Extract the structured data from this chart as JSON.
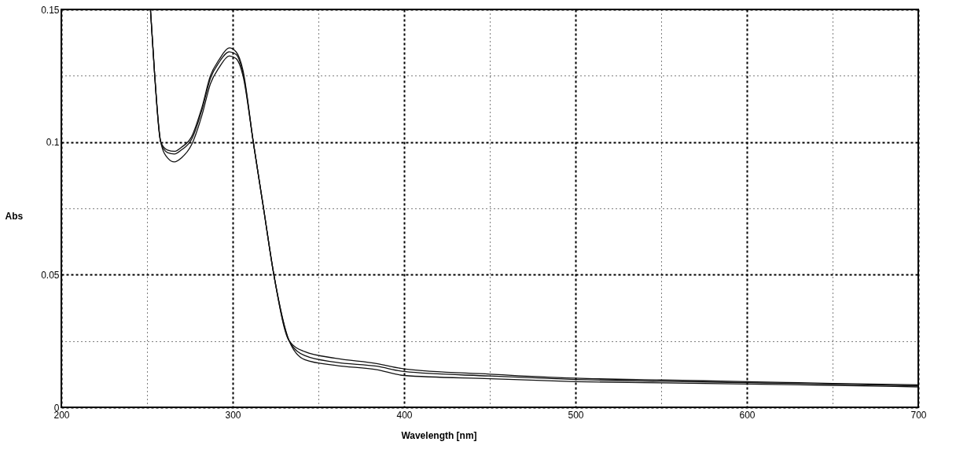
{
  "chart_data": {
    "type": "line",
    "xlabel": "Wavelength [nm]",
    "ylabel": "Abs",
    "xlim": [
      200,
      700
    ],
    "ylim": [
      0,
      0.15
    ],
    "xticks": [
      200,
      {
        "value": 250,
        "label": null
      },
      300,
      {
        "value": 350,
        "label": null
      },
      400,
      {
        "value": 450,
        "label": null
      },
      500,
      {
        "value": 550,
        "label": null
      },
      600,
      {
        "value": 650,
        "label": null
      },
      700
    ],
    "yticks": [
      0,
      {
        "value": 0.025,
        "label": null
      },
      0.05,
      {
        "value": 0.075,
        "label": null
      },
      0.1,
      {
        "value": 0.125,
        "label": null
      },
      0.15
    ],
    "grid": true,
    "line_style": "solid",
    "x": [
      252,
      254.5,
      258,
      262,
      266,
      270,
      276,
      282,
      287,
      292,
      298,
      302,
      306,
      312,
      318,
      324,
      333,
      342,
      360,
      384,
      400,
      450,
      500,
      550,
      600,
      650,
      700
    ],
    "series": [
      {
        "color": "#111111",
        "values": [
          0.15,
          0.125,
          0.1,
          0.097,
          0.0965,
          0.098,
          0.102,
          0.113,
          0.125,
          0.131,
          0.1355,
          0.134,
          0.127,
          0.1,
          0.075,
          0.05,
          0.025,
          0.021,
          0.0185,
          0.0165,
          0.0145,
          0.0125,
          0.011,
          0.0103,
          0.0097,
          0.009,
          0.0085
        ]
      },
      {
        "color": "#111111",
        "values": [
          0.15,
          0.125,
          0.1,
          0.096,
          0.0955,
          0.097,
          0.101,
          0.112,
          0.124,
          0.13,
          0.134,
          0.133,
          0.126,
          0.1,
          0.075,
          0.05,
          0.025,
          0.0195,
          0.017,
          0.0155,
          0.0135,
          0.0118,
          0.0105,
          0.0098,
          0.0093,
          0.0088,
          0.0081
        ]
      },
      {
        "color": "#111111",
        "values": [
          0.15,
          0.125,
          0.1,
          0.094,
          0.0925,
          0.094,
          0.099,
          0.11,
          0.122,
          0.128,
          0.1325,
          0.1315,
          0.125,
          0.1,
          0.075,
          0.05,
          0.025,
          0.018,
          0.0158,
          0.0142,
          0.012,
          0.0108,
          0.0097,
          0.0092,
          0.0088,
          0.0083,
          0.0077
        ]
      }
    ]
  }
}
